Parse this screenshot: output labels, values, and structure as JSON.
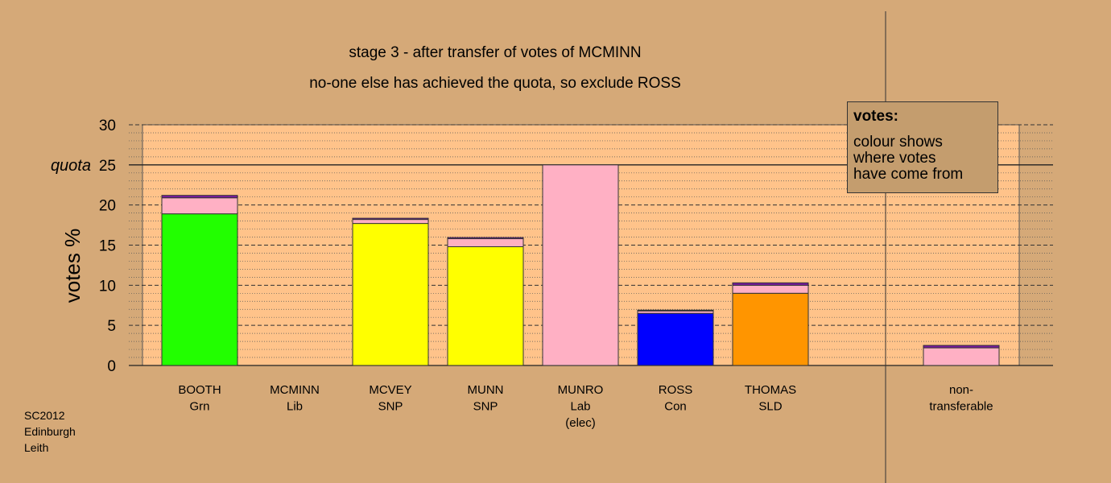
{
  "chart_data": {
    "type": "bar",
    "stacked": true,
    "title": "stage 3 - after transfer of votes of MCMINN",
    "subtitle": "no-one else has achieved the quota, so exclude ROSS",
    "ylabel": "votes %",
    "ylim": [
      0,
      30
    ],
    "yticks": [
      "0",
      "5",
      "10",
      "15",
      "20",
      "25",
      "30"
    ],
    "quota_value": 25,
    "quota_label": "quota",
    "grid": true,
    "categories": [
      {
        "name": "BOOTH",
        "party": "Grn",
        "note": ""
      },
      {
        "name": "MCMINN",
        "party": "Lib",
        "note": ""
      },
      {
        "name": "MCVEY",
        "party": "SNP",
        "note": ""
      },
      {
        "name": "MUNN",
        "party": "SNP",
        "note": ""
      },
      {
        "name": "MUNRO",
        "party": "Lab",
        "note": "(elec)"
      },
      {
        "name": "ROSS",
        "party": "Con",
        "note": ""
      },
      {
        "name": "THOMAS",
        "party": "SLD",
        "note": ""
      }
    ],
    "non_transferable_label": "non-\ntransferable",
    "source_colors": {
      "Grn": "#22ff00",
      "SNP": "#ffff00",
      "Lab": "#ffb0c4",
      "Con": "#0000ff",
      "SLD": "#ff9500",
      "Lib": "#7a1aa0"
    },
    "bars": [
      {
        "candidate": "BOOTH",
        "segments": [
          {
            "from": "Grn",
            "value": 18.9
          },
          {
            "from": "Lab",
            "value": 2.0
          },
          {
            "from": "Lib",
            "value": 0.3
          }
        ]
      },
      {
        "candidate": "MCMINN",
        "segments": []
      },
      {
        "candidate": "MCVEY",
        "segments": [
          {
            "from": "SNP",
            "value": 17.7
          },
          {
            "from": "Lab",
            "value": 0.5
          },
          {
            "from": "Lib",
            "value": 0.15
          }
        ]
      },
      {
        "candidate": "MUNN",
        "segments": [
          {
            "from": "SNP",
            "value": 14.8
          },
          {
            "from": "Lab",
            "value": 1.0
          },
          {
            "from": "Lib",
            "value": 0.15
          }
        ]
      },
      {
        "candidate": "MUNRO",
        "segments": [
          {
            "from": "Lab",
            "value": 25.0
          }
        ]
      },
      {
        "candidate": "ROSS",
        "segments": [
          {
            "from": "Con",
            "value": 6.5
          },
          {
            "from": "Lab",
            "value": 0.3
          },
          {
            "from": "Lib",
            "value": 0.1
          }
        ]
      },
      {
        "candidate": "THOMAS",
        "segments": [
          {
            "from": "SLD",
            "value": 9.0
          },
          {
            "from": "Lab",
            "value": 1.0
          },
          {
            "from": "Lib",
            "value": 0.3
          }
        ]
      },
      {
        "candidate": "non-transferable",
        "segments": [
          {
            "from": "Lab",
            "value": 2.2
          },
          {
            "from": "Lib",
            "value": 0.3
          }
        ]
      }
    ]
  },
  "legend": {
    "title": "votes:",
    "body": "colour shows\nwhere votes\nhave come from"
  },
  "credit": {
    "line1": "SC2012",
    "line2": "Edinburgh",
    "line3": "Leith"
  }
}
